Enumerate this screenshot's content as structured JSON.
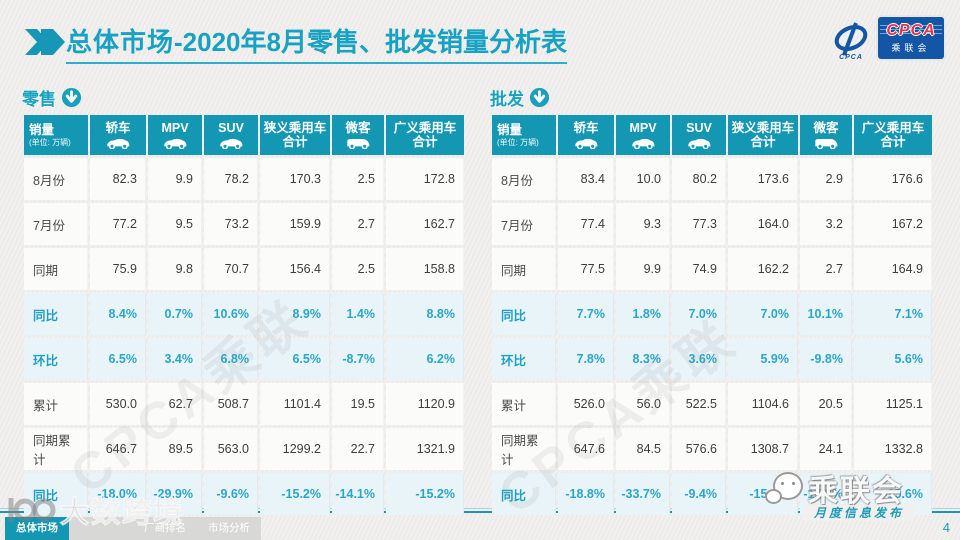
{
  "header": {
    "title_prefix": "总体市场",
    "title_rest": "-2020年8月零售、批发销量分析表",
    "logo": {
      "swoosh_text": "CPCA",
      "box_acronym": "CPCA",
      "box_name": "乘联会"
    }
  },
  "columns": [
    {
      "label": "销量",
      "sub": "(单位: 万辆)"
    },
    {
      "label": "轿车",
      "icon": "car-icon"
    },
    {
      "label": "MPV",
      "icon": "car-icon"
    },
    {
      "label": "SUV",
      "icon": "car-icon"
    },
    {
      "label": "狭义乘用车",
      "label2": "合计"
    },
    {
      "label": "微客",
      "icon": "van-icon"
    },
    {
      "label": "广义乘用车",
      "label2": "合计"
    }
  ],
  "tables": [
    {
      "section_label": "零售",
      "rows": [
        {
          "label": "8月份",
          "type": "value",
          "values": [
            "82.3",
            "9.9",
            "78.2",
            "170.3",
            "2.5",
            "172.8"
          ]
        },
        {
          "label": "7月份",
          "type": "value",
          "values": [
            "77.2",
            "9.5",
            "73.2",
            "159.9",
            "2.7",
            "162.7"
          ]
        },
        {
          "label": "同期",
          "type": "value",
          "values": [
            "75.9",
            "9.8",
            "70.7",
            "156.4",
            "2.5",
            "158.8"
          ]
        },
        {
          "label": "同比",
          "type": "percent",
          "values": [
            "8.4%",
            "0.7%",
            "10.6%",
            "8.9%",
            "1.4%",
            "8.8%"
          ]
        },
        {
          "label": "环比",
          "type": "percent",
          "values": [
            "6.5%",
            "3.4%",
            "6.8%",
            "6.5%",
            "-8.7%",
            "6.2%"
          ]
        },
        {
          "label": "累计",
          "type": "value",
          "values": [
            "530.0",
            "62.7",
            "508.7",
            "1101.4",
            "19.5",
            "1120.9"
          ]
        },
        {
          "label": "同期累计",
          "type": "value",
          "values": [
            "646.7",
            "89.5",
            "563.0",
            "1299.2",
            "22.7",
            "1321.9"
          ]
        },
        {
          "label": "同比",
          "type": "percent",
          "values": [
            "-18.0%",
            "-29.9%",
            "-9.6%",
            "-15.2%",
            "-14.1%",
            "-15.2%"
          ]
        }
      ]
    },
    {
      "section_label": "批发",
      "rows": [
        {
          "label": "8月份",
          "type": "value",
          "values": [
            "83.4",
            "10.0",
            "80.2",
            "173.6",
            "2.9",
            "176.6"
          ]
        },
        {
          "label": "7月份",
          "type": "value",
          "values": [
            "77.4",
            "9.3",
            "77.3",
            "164.0",
            "3.2",
            "167.2"
          ]
        },
        {
          "label": "同期",
          "type": "value",
          "values": [
            "77.5",
            "9.9",
            "74.9",
            "162.2",
            "2.7",
            "164.9"
          ]
        },
        {
          "label": "同比",
          "type": "percent",
          "values": [
            "7.7%",
            "1.8%",
            "7.0%",
            "7.0%",
            "10.1%",
            "7.1%"
          ]
        },
        {
          "label": "环比",
          "type": "percent",
          "values": [
            "7.8%",
            "8.3%",
            "3.6%",
            "5.9%",
            "-9.8%",
            "5.6%"
          ]
        },
        {
          "label": "累计",
          "type": "value",
          "values": [
            "526.0",
            "56.0",
            "522.5",
            "1104.6",
            "20.5",
            "1125.1"
          ]
        },
        {
          "label": "同期累计",
          "type": "value",
          "values": [
            "647.6",
            "84.5",
            "576.6",
            "1308.7",
            "24.1",
            "1332.8"
          ]
        },
        {
          "label": "同比",
          "type": "percent",
          "values": [
            "-18.8%",
            "-33.7%",
            "-9.4%",
            "-15.6%",
            "-15.0%",
            "-15.6%"
          ]
        }
      ]
    }
  ],
  "footer": {
    "tabs": [
      {
        "label": "总体市场",
        "active": true
      },
      {
        "label": "",
        "active": false
      },
      {
        "label": "厂商排名",
        "active": false
      },
      {
        "label": "市场分析",
        "active": false
      }
    ],
    "publish_label": "月度信息发布",
    "page_number": "4"
  },
  "watermarks": {
    "diagonal": "CPCA乘联",
    "bottom_left_text": "大数跨境",
    "bottom_right_text": "乘联会"
  },
  "colors": {
    "teal": "#1397b3",
    "title_teal": "#17a1c3",
    "percent_text": "#2aa6c9",
    "percent_row_bg": "#e9f4f9",
    "value_row_bg": "#fbfbfa",
    "logo_blue": "#1356a5",
    "logo_red": "#e0354e"
  }
}
